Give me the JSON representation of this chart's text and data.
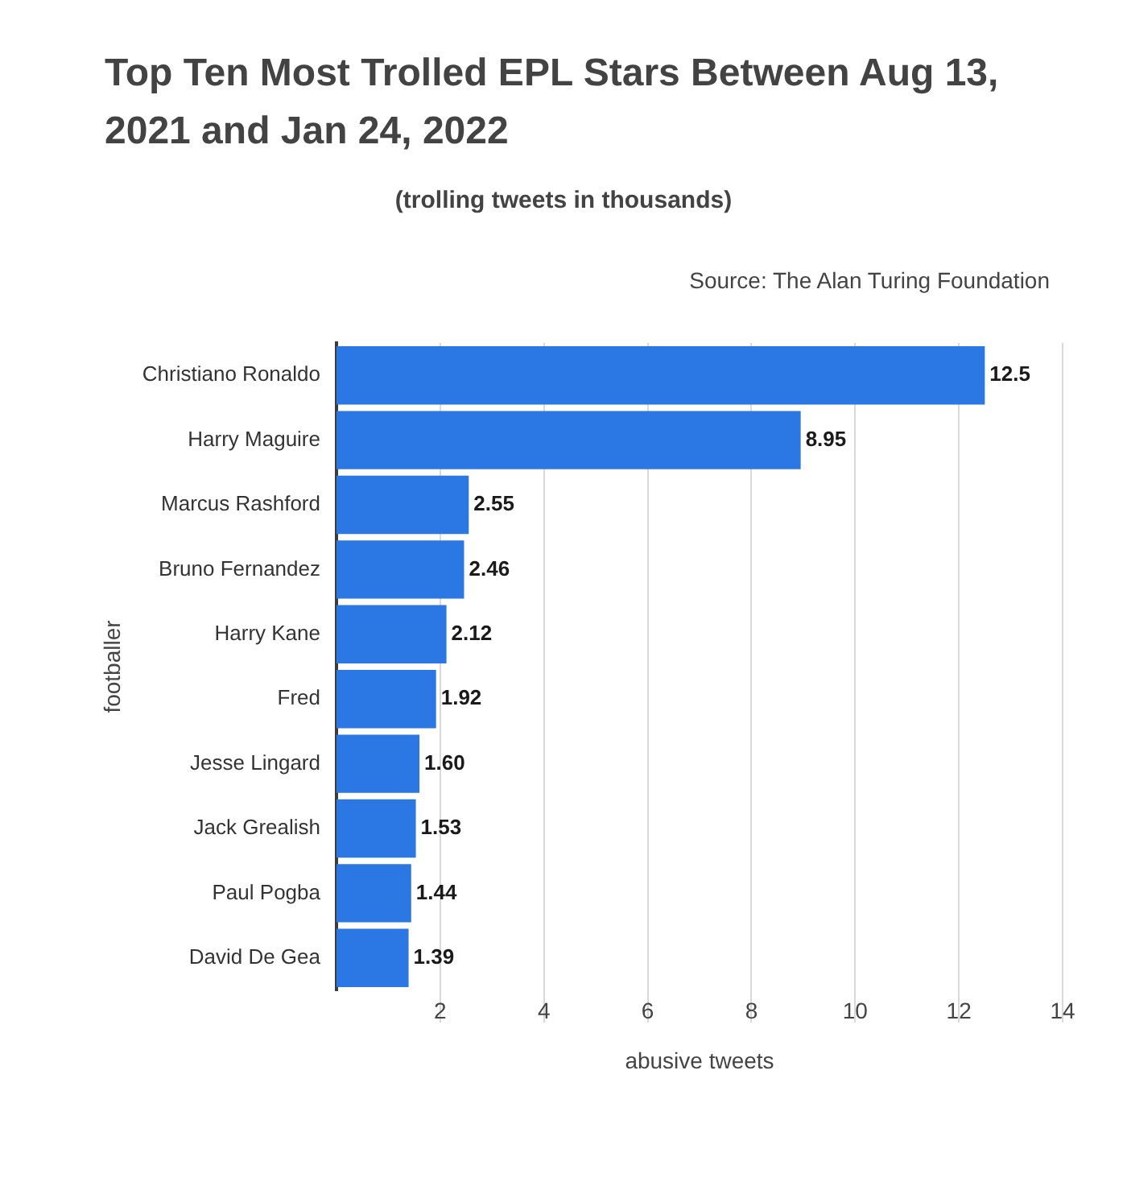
{
  "chart_data": {
    "type": "bar",
    "orientation": "horizontal",
    "title": "Top Ten Most Trolled EPL Stars Between Aug 13, 2021 and Jan 24, 2022",
    "subtitle": "(trolling tweets in thousands)",
    "annotations": [
      "Source: The Alan Turing Foundation"
    ],
    "xlabel": "abusive tweets",
    "ylabel": "footballer",
    "categories": [
      "Christiano Ronaldo",
      "Harry Maguire",
      "Marcus Rashford",
      "Bruno Fernandez",
      "Harry Kane",
      "Fred",
      "Jesse Lingard",
      "Jack Grealish",
      "Paul Pogba",
      "David De Gea"
    ],
    "values": [
      12.5,
      8.95,
      2.55,
      2.46,
      2.12,
      1.92,
      1.6,
      1.53,
      1.44,
      1.39
    ],
    "value_labels": [
      "12.5",
      "8.95",
      "2.55",
      "2.46",
      "2.12",
      "1.92",
      "1.60",
      "1.53",
      "1.44",
      "1.39"
    ],
    "color": "#2b78e4",
    "xlim": [
      0,
      14
    ],
    "xticks": [
      2,
      4,
      6,
      8,
      10,
      12,
      14
    ],
    "grid": "x"
  }
}
